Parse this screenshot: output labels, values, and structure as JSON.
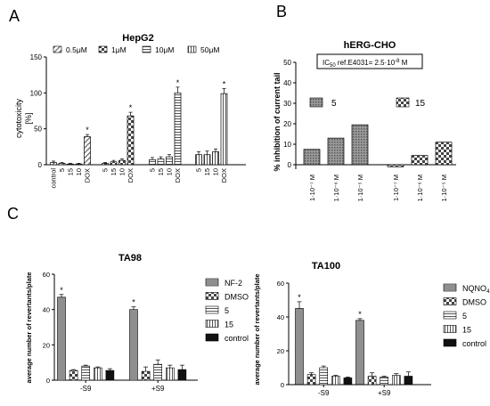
{
  "panels": {
    "A": {
      "panel_label": "A",
      "chart_data": {
        "type": "bar",
        "title": "HepG2",
        "ylabel": "cytotoxicity [%]",
        "ylabel_lines": [
          "cytotoxicity",
          "[%]"
        ],
        "ylim": [
          0,
          150
        ],
        "yticks": [
          "0",
          "50",
          "100",
          "150"
        ],
        "legend": [
          "0.5μM",
          "1μM",
          "10μM",
          "50μM"
        ],
        "legend_placement": "top",
        "grid": false,
        "series": [
          {
            "name": "0.5μM",
            "categories": [
              "control",
              "5",
              "15",
              "10",
              "DOX"
            ],
            "values": [
              3,
              2,
              1,
              1,
              39
            ],
            "errors": [
              2,
              1,
              1,
              1,
              3
            ],
            "marked": [
              false,
              false,
              false,
              false,
              true
            ]
          },
          {
            "name": "1μM",
            "categories": [
              "5",
              "15",
              "10",
              "DOX"
            ],
            "values": [
              2,
              4,
              6,
              68
            ],
            "errors": [
              1,
              2,
              2,
              5
            ],
            "marked": [
              false,
              false,
              false,
              true
            ]
          },
          {
            "name": "10μM",
            "categories": [
              "5",
              "15",
              "10",
              "DOX"
            ],
            "values": [
              7,
              8,
              11,
              100
            ],
            "errors": [
              3,
              3,
              3,
              8
            ],
            "marked": [
              false,
              false,
              false,
              true
            ]
          },
          {
            "name": "50μM",
            "categories": [
              "5",
              "15",
              "10",
              "DOX"
            ],
            "values": [
              14,
              14,
              18,
              99
            ],
            "errors": [
              4,
              5,
              4,
              7
            ],
            "marked": [
              false,
              false,
              false,
              true
            ]
          }
        ],
        "annotations": [
          "*"
        ]
      }
    },
    "B": {
      "panel_label": "B",
      "chart_data": {
        "type": "bar",
        "title": "hERG-CHO",
        "annotation_box": "IC50 ref.E4031= 2.5·10⁻⁸ M",
        "annotation_parts": [
          "IC",
          "50",
          " ref.E4031= 2.5·10",
          "-8",
          " M"
        ],
        "ylabel": "% inhibition of current tail",
        "ylim": [
          -2,
          50
        ],
        "yticks": [
          "0",
          "10",
          "20",
          "30",
          "40",
          "50"
        ],
        "grid": false,
        "legend_placement": "top",
        "series": [
          {
            "name": "5",
            "categories": [
              "1·10⁻⁷ M",
              "1·10⁻⁶ M",
              "1·10⁻⁵ M"
            ],
            "values": [
              7.5,
              13,
              19.5
            ]
          },
          {
            "name": "15",
            "categories": [
              "1·10⁻⁷ M",
              "1·10⁻⁶ M",
              "1·10⁻⁵ M"
            ],
            "values": [
              -1,
              4.5,
              11
            ]
          }
        ]
      }
    },
    "C": {
      "panel_label": "C",
      "charts": [
        {
          "type": "bar",
          "title": "TA98",
          "ylabel": "average number of revertants/plate",
          "ylim": [
            0,
            60
          ],
          "yticks": [
            "0",
            "20",
            "40",
            "60"
          ],
          "categories": [
            "-S9",
            "+S9"
          ],
          "grid": false,
          "legend_placement": "right",
          "series": [
            {
              "name": "NF-2",
              "values": [
                47,
                40
              ],
              "errors": [
                1.5,
                1.5
              ],
              "marked": [
                true,
                true
              ]
            },
            {
              "name": "DMSO",
              "values": [
                5.5,
                5
              ],
              "errors": [
                0.5,
                2.5
              ],
              "marked": [
                false,
                false
              ]
            },
            {
              "name": "5",
              "values": [
                8,
                9
              ],
              "errors": [
                0.5,
                2.5
              ],
              "marked": [
                false,
                false
              ]
            },
            {
              "name": "15",
              "values": [
                7,
                7
              ],
              "errors": [
                0.5,
                1.5
              ],
              "marked": [
                false,
                false
              ]
            },
            {
              "name": "control",
              "values": [
                5.5,
                6
              ],
              "errors": [
                1,
                2.5
              ],
              "marked": [
                false,
                false
              ]
            }
          ]
        },
        {
          "type": "bar",
          "title": "TA100",
          "ylabel": "average number of revertants/plate",
          "ylim": [
            0,
            60
          ],
          "yticks": [
            "0",
            "20",
            "40",
            "60"
          ],
          "categories": [
            "-S9",
            "+S9"
          ],
          "grid": false,
          "legend_placement": "right",
          "series": [
            {
              "name": "NQNO4",
              "values": [
                45,
                38
              ],
              "errors": [
                4,
                1
              ],
              "marked": [
                true,
                true
              ]
            },
            {
              "name": "DMSO",
              "values": [
                6,
                5
              ],
              "errors": [
                1,
                2
              ],
              "marked": [
                false,
                false
              ]
            },
            {
              "name": "5",
              "values": [
                10,
                4.5
              ],
              "errors": [
                1,
                0.5
              ],
              "marked": [
                false,
                false
              ]
            },
            {
              "name": "15",
              "values": [
                5,
                5.5
              ],
              "errors": [
                0.5,
                1
              ],
              "marked": [
                false,
                false
              ]
            },
            {
              "name": "control",
              "values": [
                4,
                5
              ],
              "errors": [
                0.5,
                2.5
              ],
              "marked": [
                false,
                false
              ]
            }
          ]
        }
      ]
    }
  },
  "colors": {
    "axis": "#000000",
    "hatch": "#555555",
    "solid_control": "#111111",
    "bar_fill": "#ffffff"
  }
}
